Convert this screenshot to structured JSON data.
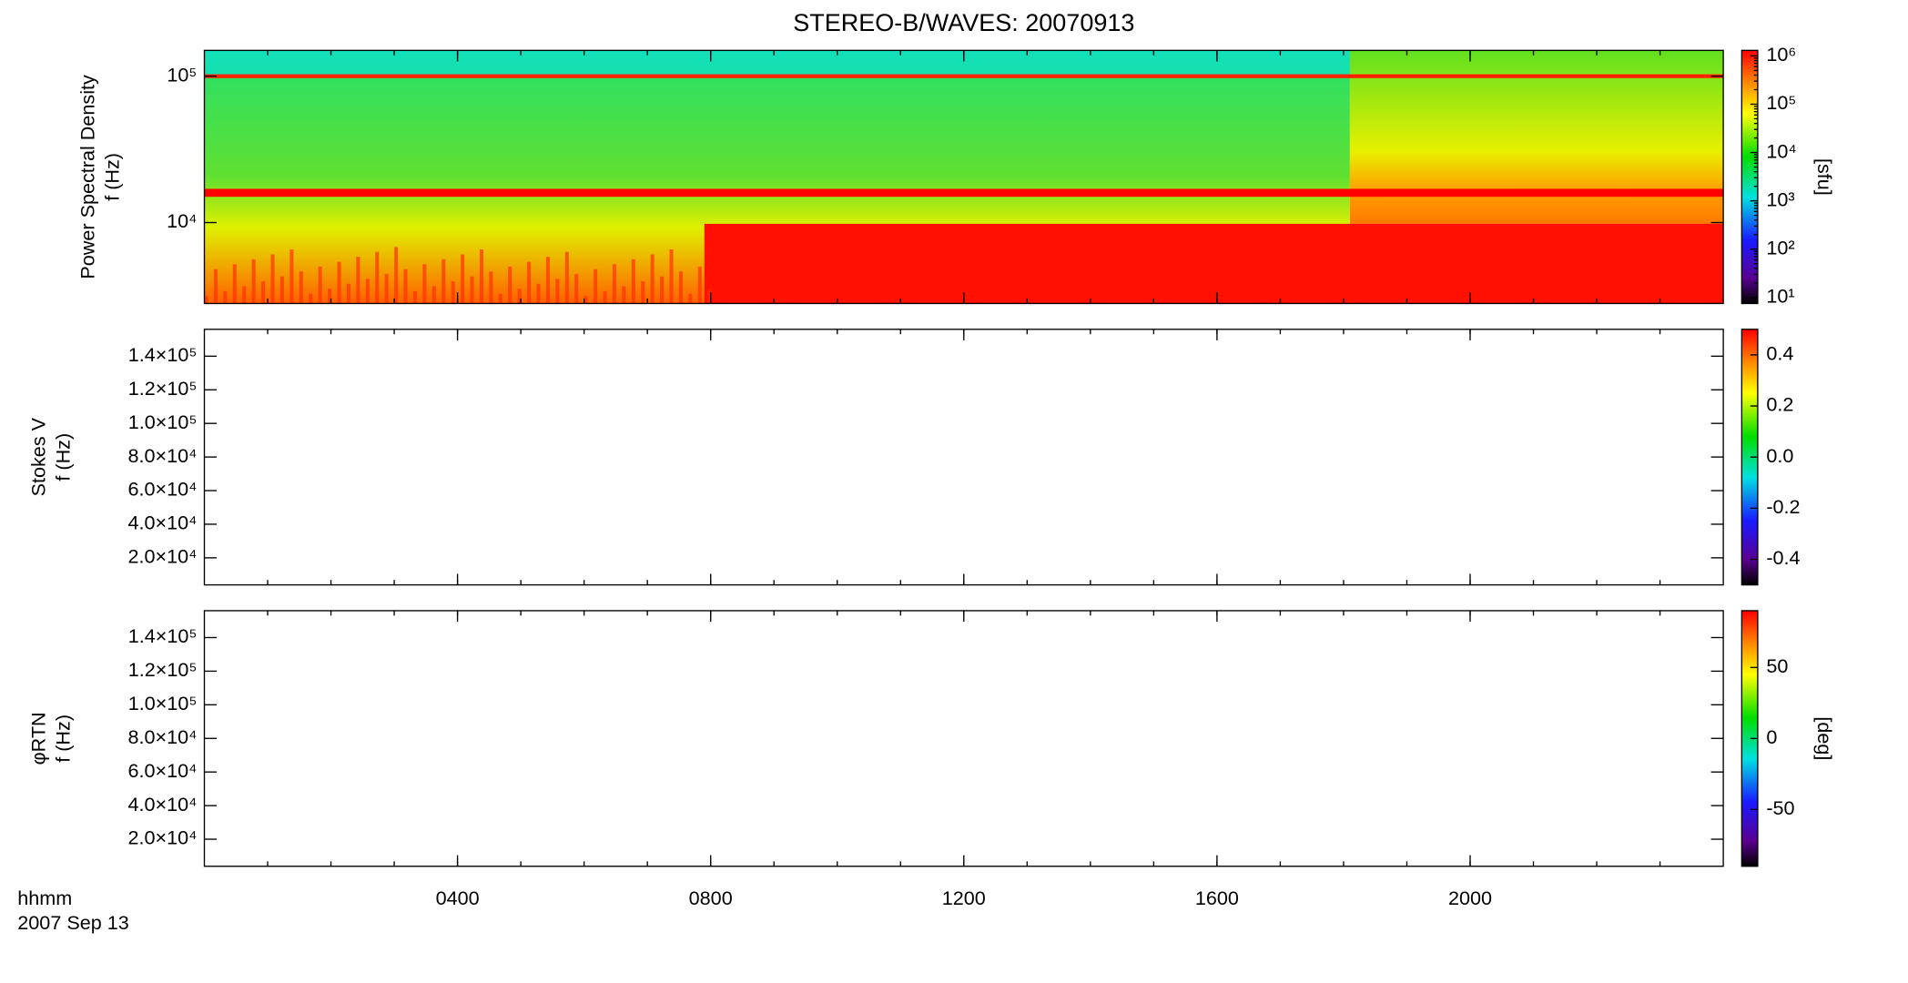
{
  "chart_data": [
    {
      "type": "spectrogram",
      "title": "STEREO-B/WAVES: 20070913",
      "ylabel": [
        "Power Spectral Density",
        "f (Hz)"
      ],
      "ylog": true,
      "ylim": [
        2800,
        150000
      ],
      "yticks": [
        {
          "value": 10000,
          "label": "10⁴"
        },
        {
          "value": 100000,
          "label": "10⁵"
        }
      ],
      "xlim": [
        0,
        24
      ],
      "colorbar": {
        "label": "[sfu]",
        "log": true,
        "lim": [
          7.5,
          1300000
        ],
        "ticks": [
          {
            "value": 10,
            "label": "10¹"
          },
          {
            "value": 100,
            "label": "10²"
          },
          {
            "value": 1000,
            "label": "10³"
          },
          {
            "value": 10000,
            "label": "10⁴"
          },
          {
            "value": 100000,
            "label": "10⁵"
          },
          {
            "value": 1000000,
            "label": "10⁶"
          }
        ]
      }
    },
    {
      "type": "spectrogram",
      "ylabel": [
        "Stokes V",
        "f (Hz)"
      ],
      "ylog": false,
      "ylim": [
        3900,
        156000
      ],
      "yticks": [
        {
          "value": 20000,
          "label": "2.0×10⁴"
        },
        {
          "value": 40000,
          "label": "4.0×10⁴"
        },
        {
          "value": 60000,
          "label": "6.0×10⁴"
        },
        {
          "value": 80000,
          "label": "8.0×10⁴"
        },
        {
          "value": 100000,
          "label": "1.0×10⁵"
        },
        {
          "value": 120000,
          "label": "1.2×10⁵"
        },
        {
          "value": 140000,
          "label": "1.4×10⁵"
        }
      ],
      "xlim": [
        0,
        24
      ],
      "colorbar": {
        "log": false,
        "lim": [
          -0.5,
          0.5
        ],
        "ticks": [
          {
            "value": -0.4,
            "label": "-0.4"
          },
          {
            "value": -0.2,
            "label": "-0.2"
          },
          {
            "value": 0,
            "label": "0.0"
          },
          {
            "value": 0.2,
            "label": "0.2"
          },
          {
            "value": 0.4,
            "label": "0.4"
          }
        ]
      }
    },
    {
      "type": "spectrogram",
      "ylabel": [
        "φRTN",
        "f (Hz)"
      ],
      "ylog": false,
      "ylim": [
        3900,
        156000
      ],
      "yticks": [
        {
          "value": 20000,
          "label": "2.0×10⁴"
        },
        {
          "value": 40000,
          "label": "4.0×10⁴"
        },
        {
          "value": 60000,
          "label": "6.0×10⁴"
        },
        {
          "value": 80000,
          "label": "8.0×10⁴"
        },
        {
          "value": 100000,
          "label": "1.0×10⁵"
        },
        {
          "value": 120000,
          "label": "1.2×10⁵"
        },
        {
          "value": 140000,
          "label": "1.4×10⁵"
        }
      ],
      "xlim": [
        0,
        24
      ],
      "xlabel": "hhmm",
      "date": "2007 Sep 13",
      "xticks": [
        {
          "value": 4,
          "label": "0400"
        },
        {
          "value": 8,
          "label": "0800"
        },
        {
          "value": 12,
          "label": "1200"
        },
        {
          "value": 16,
          "label": "1600"
        },
        {
          "value": 20,
          "label": "2000"
        }
      ],
      "colorbar": {
        "label": "[deg]",
        "log": false,
        "lim": [
          -90,
          90
        ],
        "ticks": [
          {
            "value": -50,
            "label": "-50"
          },
          0,
          50
        ]
      }
    }
  ]
}
